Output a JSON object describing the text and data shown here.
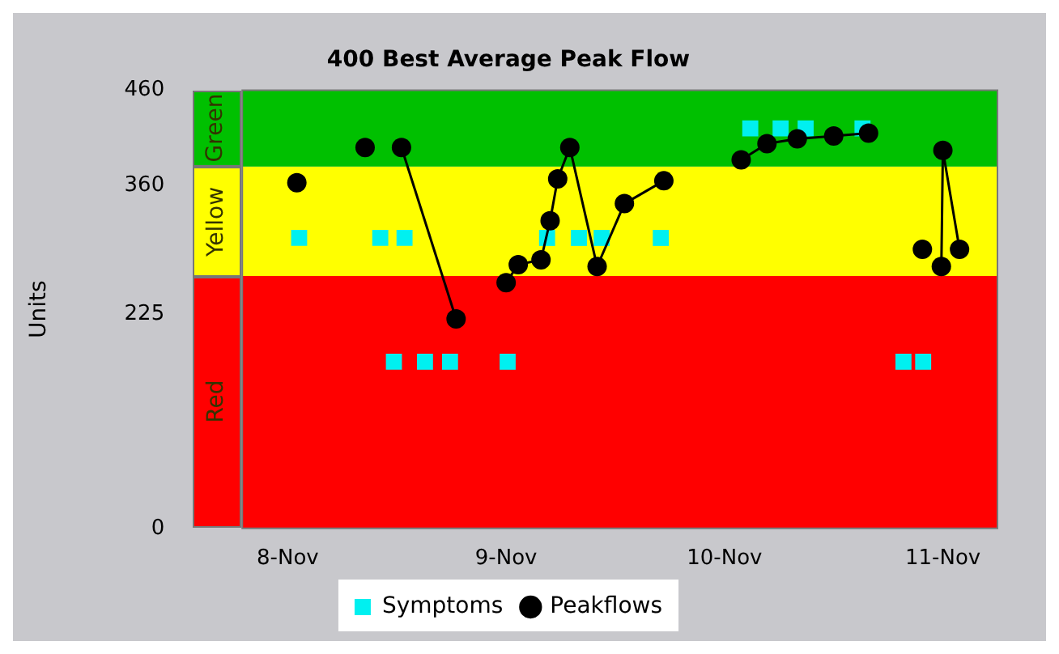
{
  "chart_data": {
    "type": "line",
    "title": "400 Best Average Peak Flow",
    "ylabel": "Units",
    "xlim": [
      "--11-07T19:00",
      "--11-11T06:00"
    ],
    "xticks": [
      {
        "value": "--11-08",
        "label": "8-Nov"
      },
      {
        "value": "--11-09",
        "label": "9-Nov"
      },
      {
        "value": "--11-10",
        "label": "10-Nov"
      },
      {
        "value": "--11-11",
        "label": "11-Nov"
      }
    ],
    "ylim": [
      0,
      460
    ],
    "yticks": [
      0,
      225,
      360,
      460
    ],
    "bands": [
      {
        "axis": "y",
        "from": 0,
        "to": 265,
        "label": "Red",
        "color": "#ff0000"
      },
      {
        "axis": "y",
        "from": 265,
        "to": 380,
        "label": "Yellow",
        "color": "#ffff00"
      },
      {
        "axis": "y",
        "from": 380,
        "to": 460,
        "label": "Green",
        "color": "#00c000"
      }
    ],
    "series": [
      {
        "name": "Symptoms",
        "type": "scatter",
        "color": "#00f0f0",
        "marker": "square",
        "x": [
          "--11-08T01:15",
          "--11-08T10:10",
          "--11-08T12:50",
          "--11-08T11:40",
          "--11-08T15:05",
          "--11-08T17:50",
          "--11-09T00:10",
          "--11-09T04:30",
          "--11-09T08:00",
          "--11-09T10:30",
          "--11-09T17:00",
          "--11-10T02:50",
          "--11-10T06:10",
          "--11-10T08:55",
          "--11-10T15:10",
          "--11-10T19:40",
          "--11-10T21:50"
        ],
        "values": [
          305,
          305,
          305,
          175,
          175,
          175,
          175,
          305,
          305,
          305,
          305,
          420,
          420,
          420,
          420,
          175,
          175
        ]
      },
      {
        "name": "Peakflows",
        "type": "line",
        "color": "#000000",
        "marker": "circle",
        "line_style": "solid",
        "x": [
          "--11-08T01:00"
        ],
        "values": [
          363
        ]
      },
      {
        "type": "line",
        "color": "#000000",
        "marker": "circle",
        "line_style": "solid",
        "x": [
          "--11-08T08:30"
        ],
        "values": [
          400
        ]
      },
      {
        "type": "line",
        "color": "#000000",
        "marker": "circle",
        "line_style": "solid",
        "x": [
          "--11-08T12:30",
          "--11-08T18:30"
        ],
        "values": [
          400,
          220
        ]
      },
      {
        "type": "line",
        "color": "#000000",
        "marker": "circle",
        "line_style": "solid",
        "x": [
          "--11-09T00:00",
          "--11-09T01:20",
          "--11-09T03:50",
          "--11-09T04:50",
          "--11-09T05:40",
          "--11-09T07:00",
          "--11-09T10:00",
          "--11-09T13:00",
          "--11-09T17:20"
        ],
        "values": [
          258,
          277,
          282,
          323,
          367,
          400,
          275,
          341,
          365
        ]
      },
      {
        "type": "line",
        "color": "#000000",
        "marker": "circle",
        "line_style": "solid",
        "x": [
          "--11-10T01:50",
          "--11-10T04:40",
          "--11-10T08:00",
          "--11-10T12:00",
          "--11-10T15:50"
        ],
        "values": [
          387,
          404,
          409,
          412,
          415
        ]
      },
      {
        "type": "line",
        "color": "#000000",
        "marker": "circle",
        "line_style": "solid",
        "x": [
          "--11-10T21:45"
        ],
        "values": [
          293
        ]
      },
      {
        "type": "line",
        "color": "#000000",
        "marker": "circle",
        "line_style": "solid",
        "x": [
          "--11-10T23:50",
          "--11-11T00:00",
          "--11-11T01:50"
        ],
        "values": [
          275,
          397,
          293
        ]
      }
    ],
    "legend": "bottom",
    "grid": false
  }
}
